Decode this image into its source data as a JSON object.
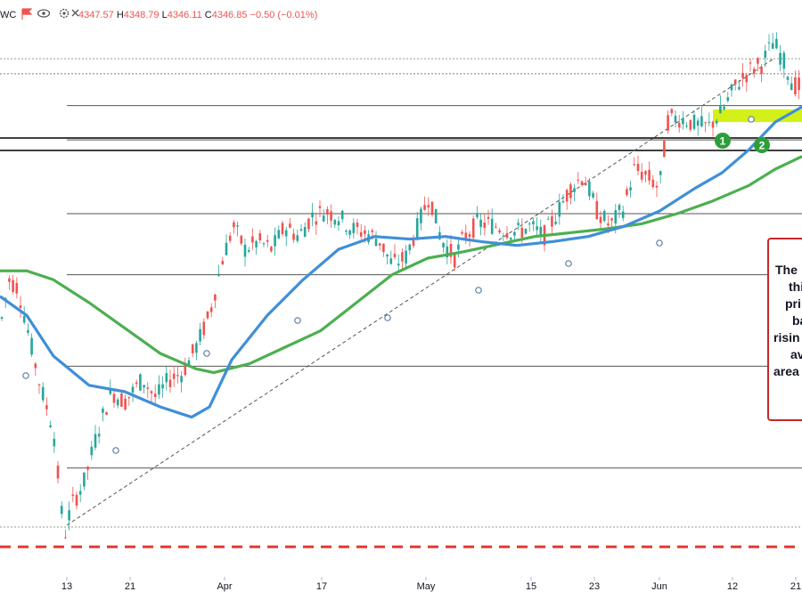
{
  "header": {
    "symbol_suffix": "WC",
    "ohlc": [
      {
        "label": "",
        "value": "4347.57",
        "color": "#ef5350"
      },
      {
        "label": "H",
        "value": "4348.79",
        "color": "#ef5350"
      },
      {
        "label": "L",
        "value": "4346.11",
        "color": "#ef5350"
      },
      {
        "label": "C",
        "value": "4346.85",
        "color": "#ef5350"
      }
    ],
    "change": "−0.50 (−0.01%)",
    "icons": [
      "flag-icon",
      "eye-icon",
      "gear-icon",
      "close-icon"
    ]
  },
  "chart_data": {
    "type": "candlestick",
    "title": "",
    "xlabel": "",
    "ylabel": "",
    "x_tick_labels": [
      "13",
      "21",
      "Apr",
      "17",
      "May",
      "15",
      "23",
      "Jun",
      "12",
      "21"
    ],
    "ylim": [
      4040,
      4460
    ],
    "grid": false,
    "colors": {
      "up": "#26a69a",
      "down": "#ef5350",
      "ma_blue": "#3f8fd8",
      "ma_green": "#4caf50",
      "support_dash": "#e53935",
      "zone_fill": "#d4f01a",
      "annotation_border": "#c62828",
      "trendline": "#555555",
      "level_line": "#555555"
    },
    "levels": [
      4430,
      4405,
      4378,
      4320,
      4272,
      4200,
      4120
    ],
    "support_level": 4058,
    "zone": {
      "low": 4392,
      "high": 4402
    },
    "markers": [
      {
        "label": "1",
        "x": 31,
        "y": 4404
      },
      {
        "label": "2",
        "x": 32,
        "y": 4398
      }
    ],
    "annotation_text": [
      "The",
      "thi",
      "pri",
      "ba",
      "risin",
      "av",
      "area"
    ],
    "trendline": {
      "from": {
        "x": -8,
        "y": 4042
      },
      "to": {
        "x": 45,
        "y": 4432
      }
    }
  }
}
